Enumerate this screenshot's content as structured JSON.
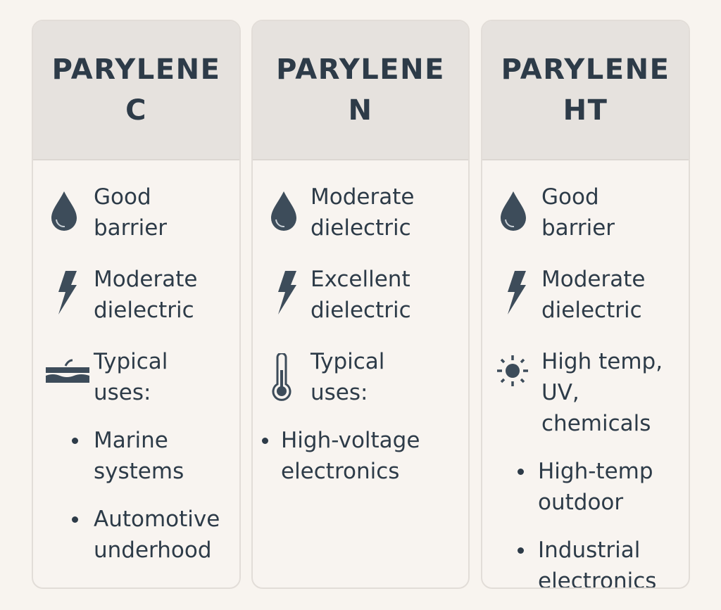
{
  "colors": {
    "text": "#2d3b48",
    "header_bg": "#e6e2de",
    "card_bg": "#f8f4f0",
    "page_bg": "#f8f4ef"
  },
  "columns": [
    {
      "title": [
        "PARYLENE",
        "C"
      ],
      "features": [
        {
          "icon": "water-drop-icon",
          "lines": [
            "Good",
            "barrier"
          ]
        },
        {
          "icon": "lightning-icon",
          "lines": [
            "Moderate",
            "dielectric"
          ]
        },
        {
          "icon": "layers-wave-icon",
          "lines": [
            "Typical",
            "uses:"
          ]
        }
      ],
      "bullets": [
        [
          "Marine",
          "systems"
        ],
        [
          "Automotive",
          "underhood"
        ]
      ]
    },
    {
      "title": [
        "PARYLENE",
        "N"
      ],
      "features": [
        {
          "icon": "water-drop-icon",
          "lines": [
            "Moderate",
            "dielectric"
          ]
        },
        {
          "icon": "lightning-icon",
          "lines": [
            "Excellent",
            "dielectric"
          ]
        },
        {
          "icon": "thermometer-icon",
          "lines": [
            "Typical",
            "uses:"
          ]
        }
      ],
      "bullets": [
        [
          "High-voltage",
          "electronics"
        ]
      ]
    },
    {
      "title": [
        "PARYLENE",
        "HT"
      ],
      "features": [
        {
          "icon": "water-drop-icon",
          "lines": [
            "Good",
            "barrier"
          ]
        },
        {
          "icon": "lightning-icon",
          "lines": [
            "Moderate",
            "dielectric"
          ]
        },
        {
          "icon": "sun-icon",
          "lines": [
            "High temp,",
            "UV, chemicals"
          ]
        }
      ],
      "bullets": [
        [
          "High-temp",
          "outdoor"
        ],
        [
          "Industrial",
          "electronics"
        ]
      ]
    }
  ]
}
